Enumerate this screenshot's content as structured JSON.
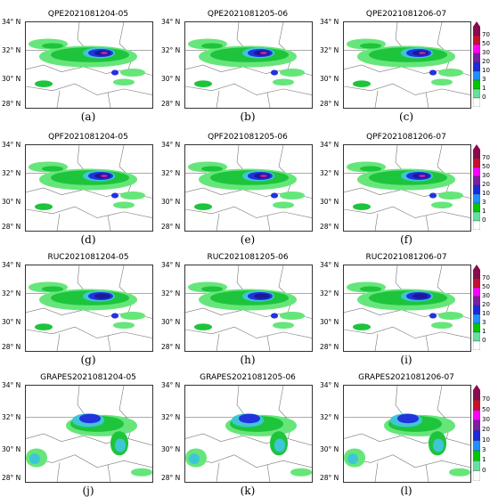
{
  "panels": [
    {
      "title": "QPE2021081204-05",
      "caption": "(a)",
      "lat_labels": [
        "34° N",
        "32° N",
        "30° N",
        "28° N"
      ]
    },
    {
      "title": "QPE2021081205-06",
      "caption": "(b)",
      "lat_labels": [
        "34° N",
        "32° N",
        "30° N",
        "28° N"
      ]
    },
    {
      "title": "QPE2021081206-07",
      "caption": "(c)",
      "lat_labels": [
        "34° N",
        "32° N",
        "30° N",
        "28° N"
      ]
    },
    {
      "title": "QPF2021081204-05",
      "caption": "(d)",
      "lat_labels": [
        "34° N",
        "32° N",
        "30° N",
        "28° N"
      ]
    },
    {
      "title": "QPF2021081205-06",
      "caption": "(e)",
      "lat_labels": [
        "34° N",
        "32° N",
        "30° N",
        "28° N"
      ]
    },
    {
      "title": "QPF2021081206-07",
      "caption": "(f)",
      "lat_labels": [
        "34° N",
        "32° N",
        "30° N",
        "28° N"
      ]
    },
    {
      "title": "RUC2021081204-05",
      "caption": "(g)",
      "lat_labels": [
        "34° N",
        "32° N",
        "30° N",
        "28° N"
      ]
    },
    {
      "title": "RUC2021081205-06",
      "caption": "(h)",
      "lat_labels": [
        "34° N",
        "32° N",
        "30° N",
        "28° N"
      ]
    },
    {
      "title": "RUC2021081206-07",
      "caption": "(i)",
      "lat_labels": [
        "34° N",
        "32° N",
        "30° N",
        "28° N"
      ]
    },
    {
      "title": "GRAPES2021081204-05",
      "caption": "(j)",
      "lat_labels": [
        "34° N",
        "32° N",
        "30° N",
        "28° N"
      ]
    },
    {
      "title": "GRAPES2021081205-06",
      "caption": "(k)",
      "lat_labels": [
        "34° N",
        "32° N",
        "30° N",
        "28° N"
      ]
    },
    {
      "title": "GRAPES2021081206-07",
      "caption": "(l)",
      "lat_labels": [
        "34° N",
        "32° N",
        "30° N",
        "28° N"
      ]
    }
  ],
  "colorbar": {
    "ticks": [
      "70",
      "50",
      "30",
      "20",
      "10",
      "3",
      "1",
      "0"
    ],
    "colors": [
      "#8b0a50",
      "#c8102e",
      "#ff00ff",
      "#7a1fa2",
      "#1c2bd9",
      "#1e90ff",
      "#00c800",
      "#66e0a0",
      "#ffffff"
    ]
  },
  "colors": {
    "light": "#66e67a",
    "green": "#1ec43c",
    "cyan": "#3fc6d6",
    "blue": "#2233dd",
    "navy": "#1a1a9a",
    "magenta": "#c21fa8",
    "border": "#777777"
  }
}
